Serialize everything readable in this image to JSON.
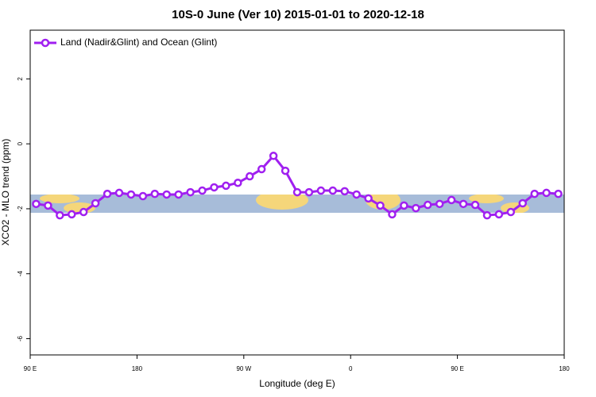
{
  "chart_data": {
    "type": "line",
    "title": "10S-0 June (Ver 10)   2015-01-01 to 2020-12-18",
    "x_label": "Longitude (deg E)",
    "y_label": "XCO2 - MLO trend (ppm)",
    "xlim": [
      90,
      540
    ],
    "ylim": [
      -6.5,
      3.5
    ],
    "xticks": [
      {
        "value": 90,
        "label": "90 E"
      },
      {
        "value": 180,
        "label": "180"
      },
      {
        "value": 270,
        "label": "90 W"
      },
      {
        "value": 360,
        "label": "0"
      },
      {
        "value": 450,
        "label": "90 E"
      },
      {
        "value": 540,
        "label": "180"
      }
    ],
    "yticks": [
      -6,
      -4,
      -2,
      0,
      2
    ],
    "legend_position": "top-left",
    "series": [
      {
        "name": "Land (Nadir&Glint) and Ocean (Glint)",
        "color": "#a020f0",
        "x": [
          95,
          105,
          115,
          125,
          135,
          145,
          155,
          165,
          175,
          185,
          195,
          205,
          215,
          225,
          235,
          245,
          255,
          265,
          275,
          285,
          295,
          305,
          315,
          325,
          335,
          345,
          355,
          365,
          375,
          385,
          395,
          405,
          415,
          425,
          435,
          445,
          455,
          465,
          475,
          485,
          495,
          505,
          515,
          525,
          535
        ],
        "values": [
          -1.85,
          -1.9,
          -2.2,
          -2.17,
          -2.1,
          -1.83,
          -1.54,
          -1.51,
          -1.56,
          -1.61,
          -1.54,
          -1.56,
          -1.56,
          -1.49,
          -1.44,
          -1.34,
          -1.29,
          -1.2,
          -1.0,
          -0.78,
          -0.37,
          -0.83,
          -1.49,
          -1.49,
          -1.44,
          -1.44,
          -1.46,
          -1.56,
          -1.68,
          -1.9,
          -2.17,
          -1.9,
          -1.98,
          -1.88,
          -1.85,
          -1.73,
          -1.85,
          -1.88,
          -2.2,
          -2.17,
          -2.1,
          -1.83,
          -1.54,
          -1.51,
          -1.54
        ]
      }
    ]
  }
}
